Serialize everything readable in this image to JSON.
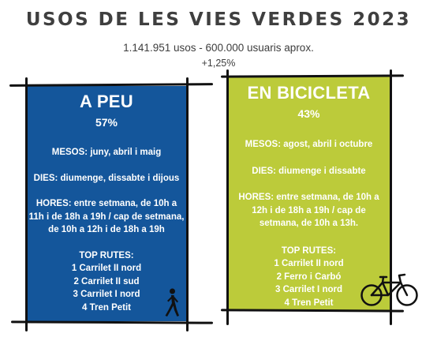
{
  "title": "USOS DE LES VIES VERDES 2023",
  "subtitle": "1.141.951 usos - 600.000 usuaris aprox.",
  "change": "+1,25%",
  "walk": {
    "heading": "A PEU",
    "percent": "57%",
    "months": "MESOS: juny, abril i maig",
    "days": "DIES: diumenge, dissabte i dijous",
    "hours": "HORES: entre setmana, de 10h a 11h i de 18h a 19h / cap de setmana, de 10h a 12h i de 18h a 19h",
    "routes_title": "TOP RUTES:",
    "routes": [
      "1 Carrilet II nord",
      "2 Carrilet II sud",
      "3 Carrilet I nord",
      "4 Tren Petit"
    ],
    "icon": "walking-person-icon"
  },
  "bike": {
    "heading": "EN BICICLETA",
    "percent": "43%",
    "months": "MESOS: agost, abril i octubre",
    "days": "DIES: diumenge i dissabte",
    "hours": "HORES: entre setmana, de 10h a 12h i de 18h a 19h / cap de setmana, de 10h a 13h.",
    "routes_title": "TOP RUTES:",
    "routes": [
      "1 Carrilet II nord",
      "2 Ferro i Carbó",
      "3 Carrilet I nord",
      "4 Tren Petit"
    ],
    "icon": "bicycle-icon"
  },
  "colors": {
    "walk_panel": "#14569b",
    "bike_panel": "#bccb3a",
    "title_text": "#3f3f3f",
    "frame": "#111111"
  }
}
